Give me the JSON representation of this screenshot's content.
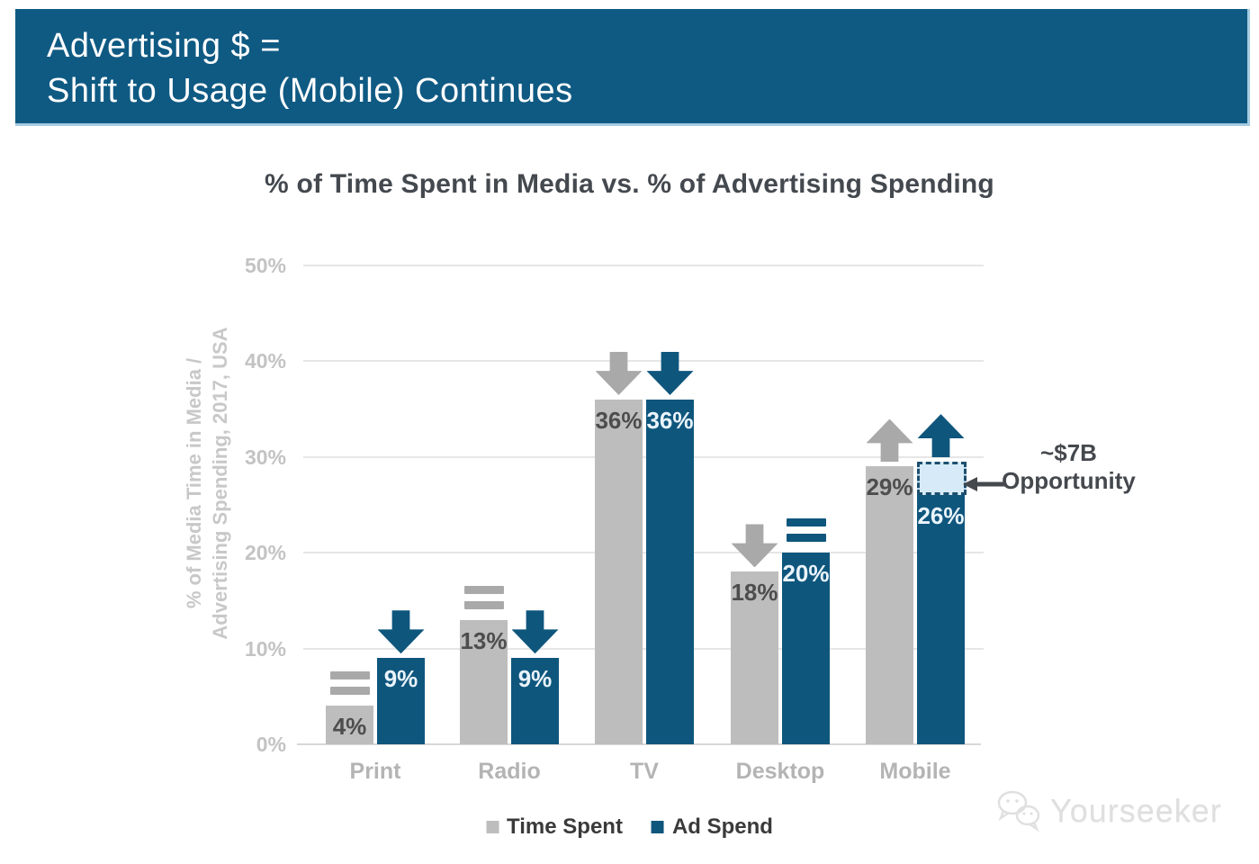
{
  "header": {
    "line1": "Advertising $ =",
    "line2": "Shift to Usage (Mobile) Continues"
  },
  "chart_data": {
    "type": "bar",
    "title": "% of Time Spent in Media vs. % of Advertising Spending",
    "ylabel_lines": [
      "% of Media Time in Media /",
      "Advertising Spending, 2017, USA"
    ],
    "categories": [
      "Print",
      "Radio",
      "TV",
      "Desktop",
      "Mobile"
    ],
    "series": [
      {
        "name": "Time Spent",
        "color": "#bdbdbd",
        "marker_color": "#a9a9a9",
        "label_color": "#4d4d4d",
        "values": [
          4,
          13,
          36,
          18,
          29
        ],
        "value_labels": [
          "4%",
          "13%",
          "36%",
          "18%",
          "29%"
        ],
        "trend_markers": [
          "equals",
          "equals",
          "down",
          "down",
          "up"
        ]
      },
      {
        "name": "Ad Spend",
        "color": "#0f567d",
        "marker_color": "#0f567d",
        "label_color": "#eaf4fb",
        "values": [
          9,
          9,
          36,
          20,
          26
        ],
        "value_labels": [
          "9%",
          "9%",
          "36%",
          "20%",
          "26%"
        ],
        "trend_markers": [
          "down",
          "down",
          "down",
          "equals",
          "up"
        ]
      }
    ],
    "y_axis": {
      "ticks": [
        0,
        10,
        20,
        30,
        40,
        50
      ],
      "tick_labels": [
        "0%",
        "10%",
        "20%",
        "30%",
        "40%",
        "50%"
      ],
      "ylim": [
        0,
        50
      ]
    },
    "grid": true,
    "legend_position": "bottom",
    "annotation": {
      "line1": "~$7B",
      "line2": "Opportunity",
      "target": "Mobile Ad Spend",
      "box_range_pct": [
        26,
        29.5
      ]
    }
  },
  "watermark": {
    "text": "Yourseeker"
  },
  "colors": {
    "header_bg": "#0f5a83",
    "header_text": "#ffffff",
    "title_text": "#44494f",
    "grid_line": "#e6e6e6",
    "axis_line": "#d8d8d8",
    "tick_text": "#c3c3c3",
    "category_text": "#b4b4b4",
    "ylabel_text": "#c8c8c8",
    "opportunity_fill": "#d6ebf7",
    "opportunity_border": "#1d4f6e",
    "annotation_text": "#45494e",
    "legend_text": "#3a3a3a",
    "watermark_text": "#dfdfdf"
  }
}
